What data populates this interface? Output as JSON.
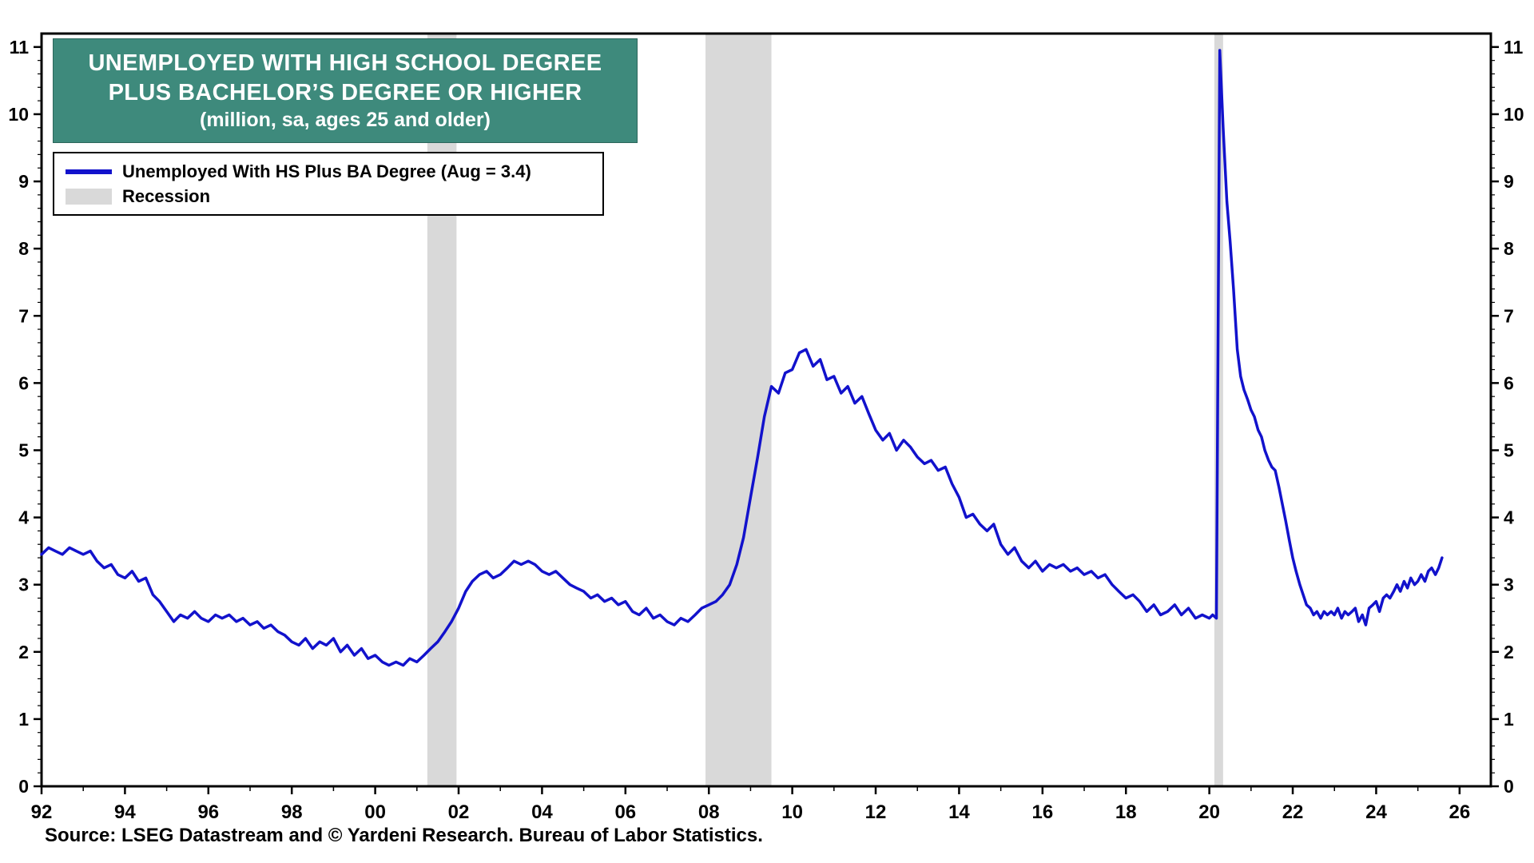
{
  "header": {
    "line1": "UNEMPLOYED WITH HIGH SCHOOL DEGREE",
    "line2": "PLUS BACHELOR’S DEGREE OR HIGHER",
    "line3": "(million, sa, ages 25 and older)"
  },
  "legend": {
    "series": "Unemployed With HS Plus BA Degree (Aug = 3.4)",
    "recession": "Recession"
  },
  "source": "Source: LSEG Datastream and © Yardeni Research. Bureau of Labor Statistics.",
  "colors": {
    "line": "#1212cc",
    "recession": "#d9d9d9",
    "title_bg": "#3e8a7c",
    "axis": "#000000"
  },
  "chart_data": {
    "type": "line",
    "title": "Unemployed With High School Degree Plus Bachelor’s Degree or Higher (million, sa, ages 25 and older)",
    "xlabel": "",
    "ylabel": "million",
    "x_range": [
      1992,
      2026.75
    ],
    "y_range": [
      0,
      11.2
    ],
    "y_ticks": [
      0,
      1,
      2,
      3,
      4,
      5,
      6,
      7,
      8,
      9,
      10,
      11
    ],
    "y_minor_step": 0.2,
    "x_tick_positions": [
      1992,
      1994,
      1996,
      1998,
      2000,
      2002,
      2004,
      2006,
      2008,
      2010,
      2012,
      2014,
      2016,
      2018,
      2020,
      2022,
      2024,
      2026
    ],
    "x_tick_labels": [
      "92",
      "94",
      "96",
      "98",
      "00",
      "02",
      "04",
      "06",
      "08",
      "10",
      "12",
      "14",
      "16",
      "18",
      "20",
      "22",
      "24",
      "26"
    ],
    "grid": false,
    "legend_position": "top-left",
    "recessions": [
      [
        2001.25,
        2001.95
      ],
      [
        2007.92,
        2009.5
      ],
      [
        2020.12,
        2020.33
      ]
    ],
    "series": [
      {
        "name": "Unemployed With HS Plus BA Degree (Aug = 3.4)",
        "latest_label": "Aug = 3.4",
        "points": [
          [
            1992.0,
            3.45
          ],
          [
            1992.17,
            3.55
          ],
          [
            1992.33,
            3.5
          ],
          [
            1992.5,
            3.45
          ],
          [
            1992.67,
            3.55
          ],
          [
            1992.83,
            3.5
          ],
          [
            1993.0,
            3.45
          ],
          [
            1993.17,
            3.5
          ],
          [
            1993.33,
            3.35
          ],
          [
            1993.5,
            3.25
          ],
          [
            1993.67,
            3.3
          ],
          [
            1993.83,
            3.15
          ],
          [
            1994.0,
            3.1
          ],
          [
            1994.17,
            3.2
          ],
          [
            1994.33,
            3.05
          ],
          [
            1994.5,
            3.1
          ],
          [
            1994.67,
            2.85
          ],
          [
            1994.83,
            2.75
          ],
          [
            1995.0,
            2.6
          ],
          [
            1995.17,
            2.45
          ],
          [
            1995.33,
            2.55
          ],
          [
            1995.5,
            2.5
          ],
          [
            1995.67,
            2.6
          ],
          [
            1995.83,
            2.5
          ],
          [
            1996.0,
            2.45
          ],
          [
            1996.17,
            2.55
          ],
          [
            1996.33,
            2.5
          ],
          [
            1996.5,
            2.55
          ],
          [
            1996.67,
            2.45
          ],
          [
            1996.83,
            2.5
          ],
          [
            1997.0,
            2.4
          ],
          [
            1997.17,
            2.45
          ],
          [
            1997.33,
            2.35
          ],
          [
            1997.5,
            2.4
          ],
          [
            1997.67,
            2.3
          ],
          [
            1997.83,
            2.25
          ],
          [
            1998.0,
            2.15
          ],
          [
            1998.17,
            2.1
          ],
          [
            1998.33,
            2.2
          ],
          [
            1998.5,
            2.05
          ],
          [
            1998.67,
            2.15
          ],
          [
            1998.83,
            2.1
          ],
          [
            1999.0,
            2.2
          ],
          [
            1999.17,
            2.0
          ],
          [
            1999.33,
            2.1
          ],
          [
            1999.5,
            1.95
          ],
          [
            1999.67,
            2.05
          ],
          [
            1999.83,
            1.9
          ],
          [
            2000.0,
            1.95
          ],
          [
            2000.17,
            1.85
          ],
          [
            2000.33,
            1.8
          ],
          [
            2000.5,
            1.85
          ],
          [
            2000.67,
            1.8
          ],
          [
            2000.83,
            1.9
          ],
          [
            2001.0,
            1.85
          ],
          [
            2001.17,
            1.95
          ],
          [
            2001.33,
            2.05
          ],
          [
            2001.5,
            2.15
          ],
          [
            2001.67,
            2.3
          ],
          [
            2001.83,
            2.45
          ],
          [
            2002.0,
            2.65
          ],
          [
            2002.17,
            2.9
          ],
          [
            2002.33,
            3.05
          ],
          [
            2002.5,
            3.15
          ],
          [
            2002.67,
            3.2
          ],
          [
            2002.83,
            3.1
          ],
          [
            2003.0,
            3.15
          ],
          [
            2003.17,
            3.25
          ],
          [
            2003.33,
            3.35
          ],
          [
            2003.5,
            3.3
          ],
          [
            2003.67,
            3.35
          ],
          [
            2003.83,
            3.3
          ],
          [
            2004.0,
            3.2
          ],
          [
            2004.17,
            3.15
          ],
          [
            2004.33,
            3.2
          ],
          [
            2004.5,
            3.1
          ],
          [
            2004.67,
            3.0
          ],
          [
            2004.83,
            2.95
          ],
          [
            2005.0,
            2.9
          ],
          [
            2005.17,
            2.8
          ],
          [
            2005.33,
            2.85
          ],
          [
            2005.5,
            2.75
          ],
          [
            2005.67,
            2.8
          ],
          [
            2005.83,
            2.7
          ],
          [
            2006.0,
            2.75
          ],
          [
            2006.17,
            2.6
          ],
          [
            2006.33,
            2.55
          ],
          [
            2006.5,
            2.65
          ],
          [
            2006.67,
            2.5
          ],
          [
            2006.83,
            2.55
          ],
          [
            2007.0,
            2.45
          ],
          [
            2007.17,
            2.4
          ],
          [
            2007.33,
            2.5
          ],
          [
            2007.5,
            2.45
          ],
          [
            2007.67,
            2.55
          ],
          [
            2007.83,
            2.65
          ],
          [
            2008.0,
            2.7
          ],
          [
            2008.17,
            2.75
          ],
          [
            2008.33,
            2.85
          ],
          [
            2008.5,
            3.0
          ],
          [
            2008.67,
            3.3
          ],
          [
            2008.83,
            3.7
          ],
          [
            2009.0,
            4.3
          ],
          [
            2009.17,
            4.9
          ],
          [
            2009.33,
            5.5
          ],
          [
            2009.5,
            5.95
          ],
          [
            2009.67,
            5.85
          ],
          [
            2009.83,
            6.15
          ],
          [
            2010.0,
            6.2
          ],
          [
            2010.17,
            6.45
          ],
          [
            2010.33,
            6.5
          ],
          [
            2010.5,
            6.25
          ],
          [
            2010.67,
            6.35
          ],
          [
            2010.83,
            6.05
          ],
          [
            2011.0,
            6.1
          ],
          [
            2011.17,
            5.85
          ],
          [
            2011.33,
            5.95
          ],
          [
            2011.5,
            5.7
          ],
          [
            2011.67,
            5.8
          ],
          [
            2011.83,
            5.55
          ],
          [
            2012.0,
            5.3
          ],
          [
            2012.17,
            5.15
          ],
          [
            2012.33,
            5.25
          ],
          [
            2012.5,
            5.0
          ],
          [
            2012.67,
            5.15
          ],
          [
            2012.83,
            5.05
          ],
          [
            2013.0,
            4.9
          ],
          [
            2013.17,
            4.8
          ],
          [
            2013.33,
            4.85
          ],
          [
            2013.5,
            4.7
          ],
          [
            2013.67,
            4.75
          ],
          [
            2013.83,
            4.5
          ],
          [
            2014.0,
            4.3
          ],
          [
            2014.17,
            4.0
          ],
          [
            2014.33,
            4.05
          ],
          [
            2014.5,
            3.9
          ],
          [
            2014.67,
            3.8
          ],
          [
            2014.83,
            3.9
          ],
          [
            2015.0,
            3.6
          ],
          [
            2015.17,
            3.45
          ],
          [
            2015.33,
            3.55
          ],
          [
            2015.5,
            3.35
          ],
          [
            2015.67,
            3.25
          ],
          [
            2015.83,
            3.35
          ],
          [
            2016.0,
            3.2
          ],
          [
            2016.17,
            3.3
          ],
          [
            2016.33,
            3.25
          ],
          [
            2016.5,
            3.3
          ],
          [
            2016.67,
            3.2
          ],
          [
            2016.83,
            3.25
          ],
          [
            2017.0,
            3.15
          ],
          [
            2017.17,
            3.2
          ],
          [
            2017.33,
            3.1
          ],
          [
            2017.5,
            3.15
          ],
          [
            2017.67,
            3.0
          ],
          [
            2017.83,
            2.9
          ],
          [
            2018.0,
            2.8
          ],
          [
            2018.17,
            2.85
          ],
          [
            2018.33,
            2.75
          ],
          [
            2018.5,
            2.6
          ],
          [
            2018.67,
            2.7
          ],
          [
            2018.83,
            2.55
          ],
          [
            2019.0,
            2.6
          ],
          [
            2019.17,
            2.7
          ],
          [
            2019.33,
            2.55
          ],
          [
            2019.5,
            2.65
          ],
          [
            2019.67,
            2.5
          ],
          [
            2019.83,
            2.55
          ],
          [
            2020.0,
            2.5
          ],
          [
            2020.08,
            2.55
          ],
          [
            2020.17,
            2.5
          ],
          [
            2020.25,
            10.95
          ],
          [
            2020.33,
            9.8
          ],
          [
            2020.42,
            8.7
          ],
          [
            2020.5,
            8.1
          ],
          [
            2020.58,
            7.4
          ],
          [
            2020.67,
            6.5
          ],
          [
            2020.75,
            6.1
          ],
          [
            2020.83,
            5.9
          ],
          [
            2020.92,
            5.75
          ],
          [
            2021.0,
            5.6
          ],
          [
            2021.08,
            5.5
          ],
          [
            2021.17,
            5.3
          ],
          [
            2021.25,
            5.2
          ],
          [
            2021.33,
            5.0
          ],
          [
            2021.42,
            4.85
          ],
          [
            2021.5,
            4.75
          ],
          [
            2021.58,
            4.7
          ],
          [
            2021.67,
            4.45
          ],
          [
            2021.75,
            4.2
          ],
          [
            2021.83,
            3.95
          ],
          [
            2021.92,
            3.65
          ],
          [
            2022.0,
            3.4
          ],
          [
            2022.08,
            3.2
          ],
          [
            2022.17,
            3.0
          ],
          [
            2022.25,
            2.85
          ],
          [
            2022.33,
            2.7
          ],
          [
            2022.42,
            2.65
          ],
          [
            2022.5,
            2.55
          ],
          [
            2022.58,
            2.6
          ],
          [
            2022.67,
            2.5
          ],
          [
            2022.75,
            2.6
          ],
          [
            2022.83,
            2.55
          ],
          [
            2022.92,
            2.6
          ],
          [
            2023.0,
            2.55
          ],
          [
            2023.08,
            2.65
          ],
          [
            2023.17,
            2.5
          ],
          [
            2023.25,
            2.6
          ],
          [
            2023.33,
            2.55
          ],
          [
            2023.42,
            2.6
          ],
          [
            2023.5,
            2.65
          ],
          [
            2023.58,
            2.45
          ],
          [
            2023.67,
            2.55
          ],
          [
            2023.75,
            2.4
          ],
          [
            2023.83,
            2.65
          ],
          [
            2023.92,
            2.7
          ],
          [
            2024.0,
            2.75
          ],
          [
            2024.08,
            2.6
          ],
          [
            2024.17,
            2.8
          ],
          [
            2024.25,
            2.85
          ],
          [
            2024.33,
            2.8
          ],
          [
            2024.42,
            2.9
          ],
          [
            2024.5,
            3.0
          ],
          [
            2024.58,
            2.9
          ],
          [
            2024.67,
            3.05
          ],
          [
            2024.75,
            2.95
          ],
          [
            2024.83,
            3.1
          ],
          [
            2024.92,
            3.0
          ],
          [
            2025.0,
            3.05
          ],
          [
            2025.08,
            3.15
          ],
          [
            2025.17,
            3.05
          ],
          [
            2025.25,
            3.2
          ],
          [
            2025.33,
            3.25
          ],
          [
            2025.42,
            3.15
          ],
          [
            2025.5,
            3.25
          ],
          [
            2025.58,
            3.4
          ]
        ]
      }
    ]
  }
}
